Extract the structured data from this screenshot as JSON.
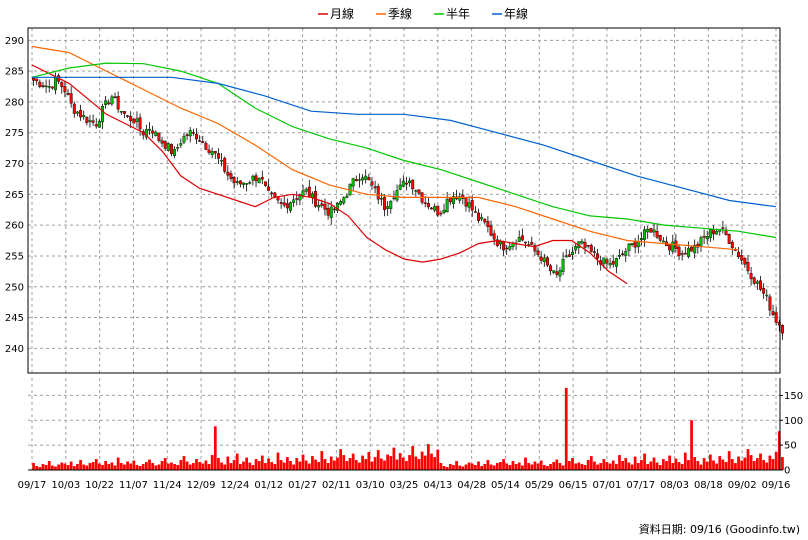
{
  "chart_data": [
    {
      "type": "candlestick",
      "legend": [
        {
          "name": "月線",
          "color": "#e00000"
        },
        {
          "name": "季線",
          "color": "#ff6600"
        },
        {
          "name": "半年",
          "color": "#00c800"
        },
        {
          "name": "年線",
          "color": "#0060d0"
        }
      ],
      "ylim": [
        236,
        292
      ],
      "yticks": [
        240,
        245,
        250,
        255,
        260,
        265,
        270,
        275,
        280,
        285,
        290
      ],
      "xticks": [
        "09/17",
        "10/03",
        "10/22",
        "11/07",
        "11/24",
        "12/09",
        "12/24",
        "01/12",
        "01/27",
        "02/11",
        "03/10",
        "03/25",
        "04/13",
        "04/28",
        "05/14",
        "05/29",
        "06/15",
        "07/01",
        "07/17",
        "08/03",
        "08/18",
        "09/02",
        "09/16"
      ],
      "up_color": "#00c000",
      "down_color": "#ff0000",
      "price_path": [
        283.5,
        283,
        282.5,
        283.5,
        282,
        279,
        278,
        277,
        276.5,
        279,
        281,
        279,
        277.5,
        277,
        275,
        276,
        274,
        273,
        271.5,
        274,
        275,
        274.5,
        273,
        272,
        270,
        268,
        266.5,
        267,
        267.5,
        268,
        265,
        264,
        263,
        264,
        265,
        265.5,
        264,
        263,
        262,
        263,
        265,
        267,
        268.5,
        267,
        265,
        263,
        265,
        266,
        267.5,
        266,
        264,
        263,
        262,
        264,
        265,
        264.5,
        263,
        261,
        260,
        258,
        256.5,
        257,
        258,
        257.5,
        256,
        255,
        253,
        251.5,
        254,
        255.5,
        257,
        256,
        255,
        254,
        253.5,
        254.5,
        256,
        257,
        258,
        259.5,
        258.5,
        257,
        256.5,
        255.5,
        256,
        256.5,
        258,
        259,
        259.5,
        258,
        256,
        254,
        252,
        250,
        248,
        245,
        243.2
      ],
      "series_lines": [
        {
          "name": "月線",
          "color": "#e00000",
          "points": [
            [
              0,
              286
            ],
            [
              4,
              284.5
            ],
            [
              8,
              283
            ],
            [
              12,
              280.5
            ],
            [
              16,
              278
            ],
            [
              20,
              276.5
            ],
            [
              24,
              275
            ],
            [
              28,
              272
            ],
            [
              32,
              268
            ],
            [
              36,
              266
            ],
            [
              40,
              265
            ],
            [
              44,
              264
            ],
            [
              48,
              263
            ],
            [
              52,
              264.5
            ],
            [
              56,
              265
            ],
            [
              60,
              264.5
            ],
            [
              64,
              263.5
            ],
            [
              68,
              261.5
            ],
            [
              72,
              258
            ],
            [
              76,
              256
            ],
            [
              80,
              254.5
            ],
            [
              84,
              254
            ],
            [
              88,
              254.5
            ],
            [
              92,
              255.5
            ],
            [
              96,
              257
            ],
            [
              100,
              257.5
            ],
            [
              104,
              257
            ],
            [
              108,
              256.5
            ],
            [
              112,
              257.5
            ],
            [
              116,
              257.5
            ],
            [
              120,
              255.5
            ],
            [
              124,
              252.5
            ],
            [
              128,
              250.5
            ]
          ]
        },
        {
          "name": "季線",
          "color": "#ff6600",
          "points": [
            [
              0,
              289
            ],
            [
              8,
              288
            ],
            [
              16,
              285
            ],
            [
              24,
              282
            ],
            [
              32,
              279
            ],
            [
              40,
              276.5
            ],
            [
              48,
              273
            ],
            [
              56,
              269
            ],
            [
              64,
              266.5
            ],
            [
              72,
              265
            ],
            [
              80,
              264.5
            ],
            [
              88,
              264.5
            ],
            [
              96,
              264.5
            ],
            [
              104,
              263
            ],
            [
              112,
              261
            ],
            [
              120,
              259
            ],
            [
              128,
              257.5
            ],
            [
              136,
              257
            ],
            [
              144,
              256.5
            ],
            [
              152,
              256
            ]
          ]
        },
        {
          "name": "半年",
          "color": "#00c800",
          "points": [
            [
              0,
              284
            ],
            [
              8,
              285.5
            ],
            [
              16,
              286.3
            ],
            [
              24,
              286.2
            ],
            [
              32,
              285
            ],
            [
              40,
              283
            ],
            [
              48,
              279
            ],
            [
              56,
              276
            ],
            [
              64,
              274
            ],
            [
              72,
              272.5
            ],
            [
              80,
              270.5
            ],
            [
              88,
              269
            ],
            [
              96,
              267
            ],
            [
              104,
              265
            ],
            [
              112,
              263
            ],
            [
              120,
              261.5
            ],
            [
              128,
              261
            ],
            [
              136,
              260
            ],
            [
              144,
              259.5
            ],
            [
              152,
              259
            ],
            [
              160,
              258
            ]
          ]
        },
        {
          "name": "年線",
          "color": "#0060d0",
          "points": [
            [
              0,
              284
            ],
            [
              10,
              284
            ],
            [
              20,
              284
            ],
            [
              30,
              284
            ],
            [
              40,
              283
            ],
            [
              50,
              281
            ],
            [
              60,
              278.5
            ],
            [
              70,
              278
            ],
            [
              80,
              278
            ],
            [
              90,
              277
            ],
            [
              100,
              275
            ],
            [
              110,
              273
            ],
            [
              120,
              270.5
            ],
            [
              130,
              268
            ],
            [
              140,
              266
            ],
            [
              150,
              264
            ],
            [
              160,
              263
            ]
          ]
        }
      ]
    },
    {
      "type": "bar",
      "ylim": [
        0,
        185
      ],
      "yticks": [
        0,
        50,
        100,
        150
      ],
      "bar_color": "#ff0000",
      "volume_pattern": [
        14,
        8,
        6,
        12,
        10,
        18,
        9,
        7,
        11,
        15,
        13,
        10,
        17,
        8,
        12,
        20,
        11,
        9,
        14,
        16,
        22,
        13,
        10,
        18,
        12,
        15,
        9,
        25,
        14,
        11,
        17,
        13,
        19,
        10,
        8,
        12,
        16,
        21,
        14,
        9,
        11,
        18,
        24,
        13,
        15,
        12,
        10,
        20,
        28,
        17,
        11,
        14,
        22,
        16,
        13,
        19,
        12,
        30,
        18,
        24,
        15,
        11,
        27,
        14,
        20,
        33,
        12,
        17,
        25,
        15,
        10,
        22,
        18,
        29,
        14,
        23,
        16,
        12,
        35,
        20,
        15,
        26,
        18,
        11,
        24,
        17,
        31,
        19,
        13,
        28,
        21,
        16,
        38,
        22,
        14,
        27,
        19,
        25,
        42,
        30,
        18,
        24,
        33,
        20,
        15,
        29,
        22,
        36,
        17,
        26,
        40,
        23,
        19,
        31,
        28,
        45,
        21,
        34,
        25,
        18,
        30,
        48,
        27,
        22,
        37,
        29,
        52,
        33,
        26,
        41
      ]
    }
  ],
  "credit": "資料日期: 09/16  (Goodinfo.tw)"
}
